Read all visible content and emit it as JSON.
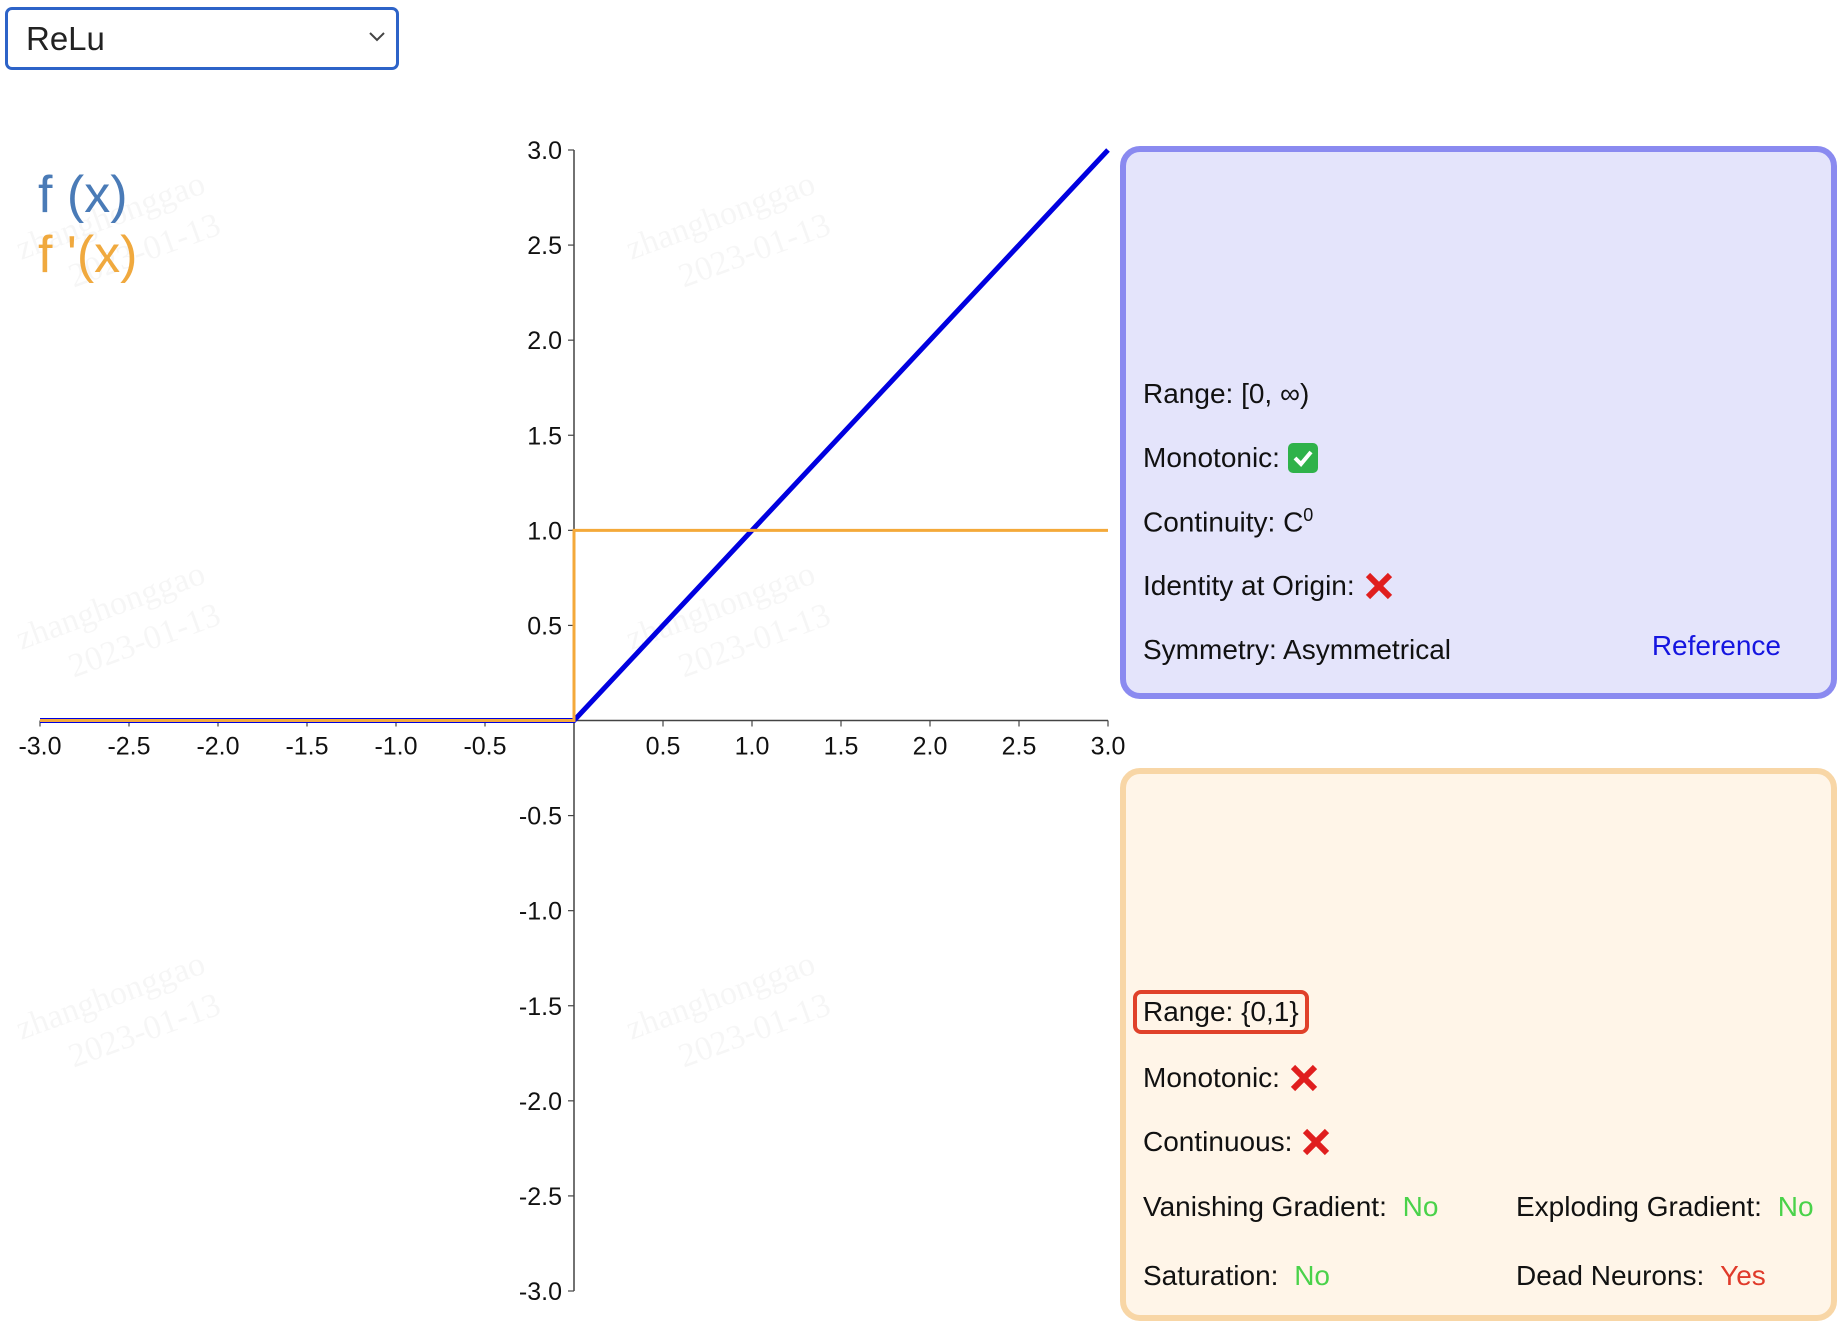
{
  "selector": {
    "value": "ReLu"
  },
  "legend": {
    "f": "f (x)",
    "df": "f '(x)"
  },
  "colors": {
    "f_line": "#0000e0",
    "df_line": "#f4a93a",
    "accent": "#2d63c8"
  },
  "chart_data": {
    "type": "line",
    "xlim": [
      -3,
      3
    ],
    "ylim": [
      -3,
      3
    ],
    "x_ticks": [
      "-3.0",
      "-2.5",
      "-2.0",
      "-1.5",
      "-1.0",
      "-0.5",
      "0.5",
      "1.0",
      "1.5",
      "2.0",
      "2.5",
      "3.0"
    ],
    "y_ticks": [
      "3.0",
      "2.5",
      "2.0",
      "1.5",
      "1.0",
      "0.5",
      "-0.5",
      "-1.0",
      "-1.5",
      "-2.0",
      "-2.5",
      "-3.0"
    ],
    "series": [
      {
        "name": "f (x)",
        "color": "#0000e0",
        "x": [
          -3,
          0,
          3
        ],
        "y": [
          0,
          0,
          3
        ]
      },
      {
        "name": "f '(x)",
        "color": "#f4a93a",
        "x": [
          -3,
          0,
          0,
          3
        ],
        "y": [
          0,
          0,
          1,
          1
        ]
      }
    ]
  },
  "function_panel": {
    "range": "Range: [0, ∞)",
    "monotonic": "Monotonic:",
    "continuity_label": "Continuity: C",
    "continuity_sup": "0",
    "identity": "Identity at Origin:",
    "symmetry": "Symmetry: Asymmetrical",
    "reference": "Reference"
  },
  "derivative_panel": {
    "range": "Range: {0,1}",
    "monotonic": "Monotonic:",
    "continuous": "Continuous:",
    "vanishing_label": "Vanishing Gradient: ",
    "vanishing_value": "No",
    "exploding_label": "Exploding Gradient: ",
    "exploding_value": "No",
    "saturation_label": "Saturation: ",
    "saturation_value": "No",
    "dead_label": "Dead Neurons: ",
    "dead_value": "Yes"
  },
  "watermark": {
    "name": "zhanghonggao",
    "date": "2023-01-13"
  }
}
